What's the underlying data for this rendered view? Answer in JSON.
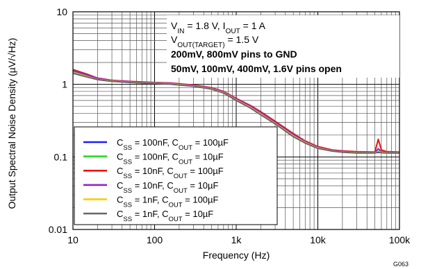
{
  "chart_data": {
    "type": "line",
    "title": "",
    "xlabel": "Frequency (Hz)",
    "ylabel": "Output Spectral Noise Density (µV/√Hz)",
    "xscale": "log",
    "yscale": "log",
    "xlim": [
      10,
      100000
    ],
    "ylim": [
      0.01,
      10
    ],
    "grid": true,
    "x_tick_labels": [
      "10",
      "100",
      "1k",
      "10k",
      "100k"
    ],
    "y_tick_labels": [
      "0.01",
      "0.1",
      "1",
      "10"
    ],
    "legend_position": "bottom-left",
    "annotations": [
      "V_IN = 1.8 V, I_OUT = 1 A",
      "V_OUT(TARGET) = 1.5 V",
      "200mV, 800mV pins to GND",
      "50mV, 100mV, 400mV, 1.6V pins open"
    ],
    "figure_id": "G063",
    "x": [
      10,
      15,
      20,
      30,
      50,
      70,
      100,
      150,
      200,
      300,
      500,
      700,
      1000,
      1500,
      2000,
      3000,
      5000,
      7000,
      10000,
      15000,
      20000,
      30000,
      50000,
      55000,
      60000,
      70000,
      100000
    ],
    "series": [
      {
        "name": "C_SS = 100nF, C_OUT = 100µF",
        "color": "#1a1aff",
        "values": [
          1.48,
          1.3,
          1.18,
          1.12,
          1.08,
          1.06,
          1.05,
          1.03,
          1.0,
          0.96,
          0.88,
          0.78,
          0.62,
          0.49,
          0.4,
          0.3,
          0.2,
          0.16,
          0.135,
          0.122,
          0.118,
          0.115,
          0.115,
          0.115,
          0.115,
          0.115,
          0.115
        ]
      },
      {
        "name": "C_SS = 100nF, C_OUT = 10µF",
        "color": "#22dd22",
        "values": [
          1.52,
          1.32,
          1.2,
          1.13,
          1.09,
          1.07,
          1.06,
          1.04,
          1.01,
          0.97,
          0.89,
          0.79,
          0.63,
          0.5,
          0.41,
          0.31,
          0.21,
          0.165,
          0.138,
          0.124,
          0.12,
          0.117,
          0.116,
          0.12,
          0.118,
          0.117,
          0.116
        ]
      },
      {
        "name": "C_SS = 10nF, C_OUT = 100µF",
        "color": "#ee1111",
        "values": [
          1.6,
          1.38,
          1.22,
          1.14,
          1.1,
          1.08,
          1.06,
          1.05,
          1.02,
          0.98,
          0.9,
          0.8,
          0.64,
          0.51,
          0.42,
          0.31,
          0.21,
          0.166,
          0.139,
          0.125,
          0.121,
          0.118,
          0.117,
          0.175,
          0.125,
          0.118,
          0.117
        ]
      },
      {
        "name": "C_SS = 10nF, C_OUT = 10µF",
        "color": "#9922cc",
        "values": [
          1.55,
          1.35,
          1.21,
          1.13,
          1.09,
          1.07,
          1.06,
          1.04,
          1.01,
          0.97,
          0.89,
          0.79,
          0.63,
          0.5,
          0.41,
          0.3,
          0.205,
          0.162,
          0.136,
          0.123,
          0.119,
          0.116,
          0.115,
          0.13,
          0.118,
          0.116,
          0.115
        ]
      },
      {
        "name": "C_SS = 1nF, C_OUT = 100µF",
        "color": "#ffcc00",
        "values": [
          1.45,
          1.28,
          1.17,
          1.11,
          1.07,
          1.05,
          1.04,
          1.02,
          0.99,
          0.95,
          0.87,
          0.77,
          0.61,
          0.48,
          0.39,
          0.29,
          0.195,
          0.158,
          0.133,
          0.121,
          0.117,
          0.114,
          0.114,
          0.118,
          0.116,
          0.114,
          0.114
        ]
      },
      {
        "name": "C_SS = 1nF, C_OUT = 10µF",
        "color": "#666666",
        "values": [
          1.42,
          1.26,
          1.16,
          1.1,
          1.06,
          1.04,
          1.03,
          1.01,
          0.98,
          0.94,
          0.86,
          0.76,
          0.6,
          0.47,
          0.38,
          0.285,
          0.19,
          0.155,
          0.131,
          0.12,
          0.116,
          0.113,
          0.113,
          0.116,
          0.114,
          0.113,
          0.113
        ]
      }
    ]
  }
}
